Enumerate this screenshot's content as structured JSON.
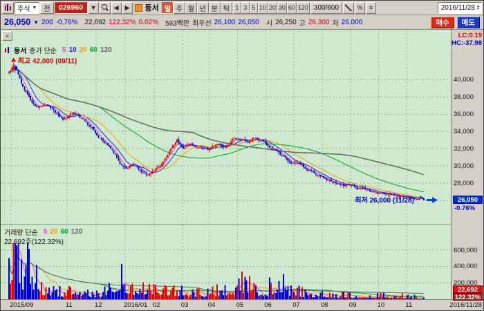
{
  "toolbar": {
    "menu_label": "주식",
    "prev_label": "전",
    "code": "026960",
    "stock_name": "동서",
    "period_buttons": [
      "일",
      "주",
      "월",
      "년",
      "분",
      "틱"
    ],
    "active_period": "일",
    "tick_buttons": [
      "1",
      "3",
      "5",
      "10",
      "20",
      "30",
      "60",
      "120"
    ],
    "bar_count": "300/600",
    "percent_label": "%",
    "date": "2016/11/28"
  },
  "infobar": {
    "price": "26,050",
    "change_dir": "▼",
    "change": "200",
    "change_pct": "-0.76%",
    "volume": "22,692",
    "volume_pct": "122.32%",
    "turnover_pct": "0.02%",
    "turnover": "593백만",
    "best_label": "최우선",
    "best_ask": "26,100",
    "best_bid": "26,050",
    "open_label": "시",
    "open": "26,250",
    "high_label": "고",
    "high": "26,300",
    "low_label": "저",
    "low": "26,000",
    "buy_label": "매수",
    "sell_label": "매도"
  },
  "chart_data": [
    {
      "type": "candlestick",
      "name": "동서",
      "legend_label": "종가 단순",
      "ma": [
        {
          "period": "5",
          "color": "#ff3cc8"
        },
        {
          "period": "10",
          "color": "#2222ee"
        },
        {
          "period": "20",
          "color": "#f0a000"
        },
        {
          "period": "60",
          "color": "#00a020"
        },
        {
          "period": "120",
          "color": "#666666"
        }
      ],
      "up_color": "#e60000",
      "down_color": "#0000dc",
      "high_marker": "최고 42,000 (09/11)",
      "low_marker": "최저 26,000 (11/28)",
      "lc_label": "LC:0.19",
      "hc_label": "HC:-37.98",
      "last_close": 26050,
      "last_close_label": "26,050",
      "last_pct_label": "-0.76%",
      "y_ticks": [
        40000,
        38000,
        36000,
        34000,
        32000,
        30000,
        28000,
        26000
      ],
      "ylim": [
        23200,
        45800
      ],
      "candle_count": 270,
      "trend_anchors": [
        [
          0,
          40800
        ],
        [
          0.013,
          41800
        ],
        [
          0.03,
          39300
        ],
        [
          0.05,
          37700
        ],
        [
          0.07,
          36600
        ],
        [
          0.09,
          37400
        ],
        [
          0.11,
          36300
        ],
        [
          0.13,
          35200
        ],
        [
          0.155,
          36100
        ],
        [
          0.18,
          35300
        ],
        [
          0.2,
          34300
        ],
        [
          0.225,
          33000
        ],
        [
          0.25,
          31800
        ],
        [
          0.27,
          30300
        ],
        [
          0.285,
          29500
        ],
        [
          0.3,
          30400
        ],
        [
          0.315,
          29600
        ],
        [
          0.33,
          28900
        ],
        [
          0.35,
          29300
        ],
        [
          0.37,
          30300
        ],
        [
          0.39,
          31800
        ],
        [
          0.405,
          32900
        ],
        [
          0.42,
          32100
        ],
        [
          0.44,
          32600
        ],
        [
          0.46,
          32300
        ],
        [
          0.48,
          32000
        ],
        [
          0.5,
          32400
        ],
        [
          0.52,
          32100
        ],
        [
          0.54,
          32900
        ],
        [
          0.56,
          33200
        ],
        [
          0.575,
          32700
        ],
        [
          0.59,
          33300
        ],
        [
          0.61,
          32700
        ],
        [
          0.63,
          32100
        ],
        [
          0.65,
          31600
        ],
        [
          0.67,
          30900
        ],
        [
          0.69,
          30400
        ],
        [
          0.72,
          29700
        ],
        [
          0.75,
          29000
        ],
        [
          0.78,
          28400
        ],
        [
          0.81,
          27900
        ],
        [
          0.84,
          27600
        ],
        [
          0.87,
          27300
        ],
        [
          0.9,
          26900
        ],
        [
          0.93,
          26600
        ],
        [
          0.96,
          26350
        ],
        [
          1,
          26100
        ]
      ],
      "x_axis": {
        "labels": [
          "2015/09",
          "11",
          "12",
          "2016/01",
          "02",
          "03",
          "04",
          "05",
          "06",
          "07",
          "08",
          "09",
          "10",
          "11"
        ],
        "fractions": [
          0.005,
          0.14,
          0.21,
          0.28,
          0.35,
          0.418,
          0.483,
          0.551,
          0.619,
          0.687,
          0.755,
          0.823,
          0.891,
          0.959
        ],
        "end_label": "2016/11/28"
      }
    },
    {
      "type": "bar",
      "legend_label": "거래량 단순",
      "ma": [
        {
          "period": "5",
          "color": "#ff3cc8"
        },
        {
          "period": "20",
          "color": "#f0a000"
        },
        {
          "period": "60",
          "color": "#00a020"
        },
        {
          "period": "120",
          "color": "#666666"
        }
      ],
      "current_label": "22,692주(122.32%)",
      "badge_value": "22,692",
      "badge_pct": "122.32%",
      "y_ticks": [
        600000,
        400000,
        200000
      ],
      "ylim": [
        0,
        900000
      ],
      "last_volume": 22692,
      "volume_anchors": [
        [
          0,
          280000
        ],
        [
          0.01,
          420000
        ],
        [
          0.02,
          640000
        ],
        [
          0.03,
          240000
        ],
        [
          0.045,
          600000
        ],
        [
          0.06,
          280000
        ],
        [
          0.08,
          150000
        ],
        [
          0.12,
          95000
        ],
        [
          0.16,
          75000
        ],
        [
          0.2,
          65000
        ],
        [
          0.24,
          95000
        ],
        [
          0.27,
          330000
        ],
        [
          0.29,
          120000
        ],
        [
          0.33,
          170000
        ],
        [
          0.36,
          140000
        ],
        [
          0.4,
          90000
        ],
        [
          0.45,
          70000
        ],
        [
          0.5,
          110000
        ],
        [
          0.54,
          150000
        ],
        [
          0.57,
          210000
        ],
        [
          0.6,
          120000
        ],
        [
          0.63,
          90000
        ],
        [
          0.655,
          250000
        ],
        [
          0.68,
          100000
        ],
        [
          0.72,
          70000
        ],
        [
          0.78,
          58000
        ],
        [
          0.84,
          50000
        ],
        [
          0.9,
          45000
        ],
        [
          0.95,
          38000
        ],
        [
          1,
          22692
        ]
      ]
    }
  ]
}
